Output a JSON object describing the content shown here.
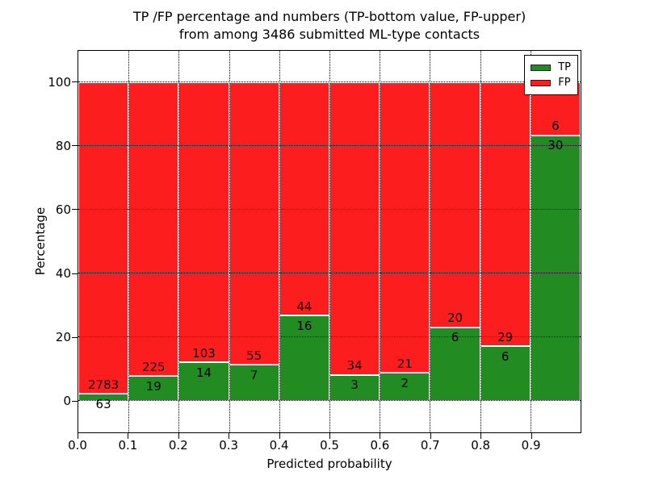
{
  "figure": {
    "title_line1": "TP /FP percentage and numbers (TP-bottom value, FP-upper)",
    "title_line2": "from among 3486 submitted ML-type contacts"
  },
  "chart_data": {
    "type": "bar",
    "variant": "stacked-normalized-100pct",
    "title": "TP /FP percentage and numbers (TP-bottom value, FP-upper)\nfrom among 3486 submitted ML-type contacts",
    "xlabel": "Predicted probability",
    "ylabel": "Percentage",
    "total_contacts": 3486,
    "bin_edges": [
      0.0,
      0.1,
      0.2,
      0.3,
      0.4,
      0.5,
      0.6,
      0.7,
      0.8,
      0.9,
      1.0
    ],
    "xtick_labels": [
      "0.0",
      "0.1",
      "0.2",
      "0.3",
      "0.4",
      "0.5",
      "0.6",
      "0.7",
      "0.8",
      "0.9"
    ],
    "ytick_values": [
      0,
      20,
      40,
      60,
      80,
      100
    ],
    "xlim": [
      0.0,
      1.0
    ],
    "ylim": [
      -10,
      110
    ],
    "grid": true,
    "grid_style": "dotted",
    "bar_edge_color": "#ffffff",
    "series": [
      {
        "name": "TP",
        "color": "#228b22",
        "position": "bottom",
        "counts": [
          63,
          19,
          14,
          7,
          16,
          3,
          2,
          6,
          6,
          30
        ],
        "pct": [
          2.21,
          7.79,
          11.97,
          11.29,
          26.67,
          8.11,
          8.7,
          23.08,
          17.14,
          83.33
        ]
      },
      {
        "name": "FP",
        "color": "#fc1e1e",
        "position": "top",
        "counts": [
          2783,
          225,
          103,
          55,
          44,
          34,
          21,
          20,
          29,
          6
        ],
        "pct": [
          97.79,
          92.21,
          88.03,
          88.71,
          73.33,
          91.89,
          91.3,
          76.92,
          82.86,
          16.67
        ]
      }
    ],
    "legend": {
      "position": "upper-right",
      "entries": [
        {
          "label": "TP",
          "color": "#228b22"
        },
        {
          "label": "FP",
          "color": "#fc1e1e"
        }
      ]
    }
  }
}
